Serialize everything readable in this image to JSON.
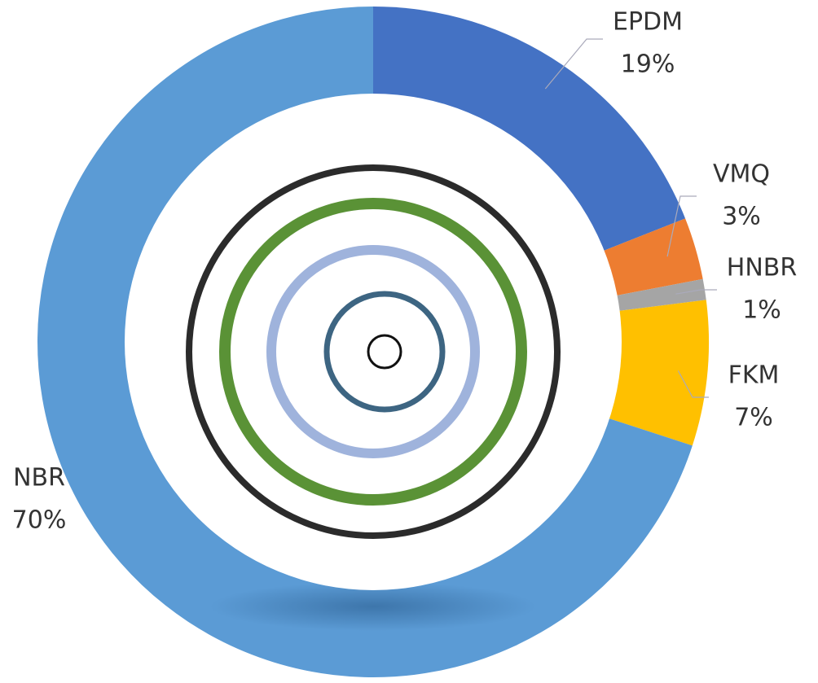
{
  "chart_data": {
    "type": "donut",
    "categories": [
      "EPDM",
      "VMQ",
      "HNBR",
      "FKM",
      "NBR"
    ],
    "values": [
      19,
      3,
      1,
      7,
      70
    ],
    "value_labels": [
      "19%",
      "3%",
      "1%",
      "7%",
      "70%"
    ],
    "colors": [
      "#4472c4",
      "#ed7d31",
      "#a5a5a5",
      "#ffc000",
      "#5b9bd5"
    ]
  }
}
